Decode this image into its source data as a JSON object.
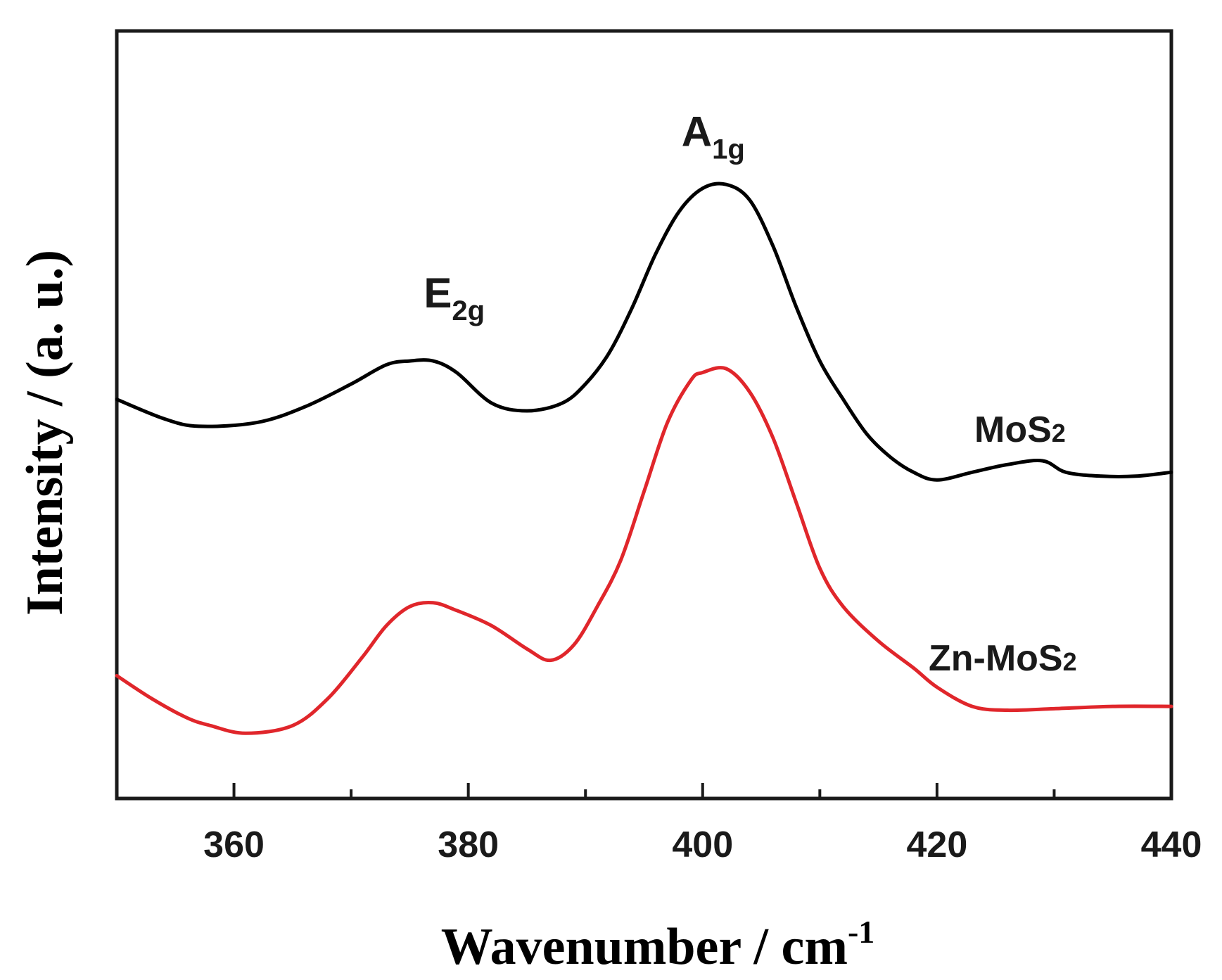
{
  "chart_data": {
    "type": "line",
    "title": "",
    "xlabel": "Wavenumber / cm",
    "xlabel_superscript": "-1",
    "ylabel": "Intensity / (a. u.)",
    "xlim": [
      350,
      440
    ],
    "ylim": [
      0,
      100
    ],
    "x_ticks": [
      360,
      380,
      400,
      420,
      440
    ],
    "x_tick_labels": [
      "360",
      "380",
      "400",
      "420",
      "440"
    ],
    "y_ticks_shown": false,
    "grid": false,
    "series": [
      {
        "name": "MoS2",
        "label_main": "MoS",
        "label_sub": "2",
        "color": "#000000",
        "points": [
          [
            350,
            52
          ],
          [
            354,
            49.5
          ],
          [
            357,
            48.5
          ],
          [
            362,
            49
          ],
          [
            366,
            51
          ],
          [
            370,
            54
          ],
          [
            373,
            56.5
          ],
          [
            375,
            57
          ],
          [
            377,
            57
          ],
          [
            379,
            55.5
          ],
          [
            382,
            51.5
          ],
          [
            385,
            50.5
          ],
          [
            388,
            51.5
          ],
          [
            390,
            54
          ],
          [
            392,
            58
          ],
          [
            394,
            64
          ],
          [
            396,
            71
          ],
          [
            398,
            76.5
          ],
          [
            400,
            79.5
          ],
          [
            402,
            80
          ],
          [
            404,
            78
          ],
          [
            406,
            72
          ],
          [
            408,
            64
          ],
          [
            410,
            57
          ],
          [
            412,
            52
          ],
          [
            414,
            47.5
          ],
          [
            416,
            44.5
          ],
          [
            418,
            42.5
          ],
          [
            420,
            41.5
          ],
          [
            423,
            42.5
          ],
          [
            426,
            43.5
          ],
          [
            429,
            44
          ],
          [
            431,
            42.5
          ],
          [
            434,
            42
          ],
          [
            437,
            42
          ],
          [
            440,
            42.5
          ]
        ]
      },
      {
        "name": "Zn-MoS2",
        "label_main": "Zn-MoS",
        "label_sub": "2",
        "color": "#e0262b",
        "points": [
          [
            350,
            16
          ],
          [
            353,
            13
          ],
          [
            356,
            10.5
          ],
          [
            358,
            9.5
          ],
          [
            361,
            8.5
          ],
          [
            365,
            9.5
          ],
          [
            368,
            13
          ],
          [
            371,
            18.5
          ],
          [
            373,
            22.5
          ],
          [
            375,
            25
          ],
          [
            377,
            25.5
          ],
          [
            379,
            24.5
          ],
          [
            382,
            22.5
          ],
          [
            385,
            19.5
          ],
          [
            387,
            18
          ],
          [
            389,
            20
          ],
          [
            391,
            25
          ],
          [
            393,
            31
          ],
          [
            395,
            40
          ],
          [
            397,
            49
          ],
          [
            399,
            54.5
          ],
          [
            400,
            55.5
          ],
          [
            402,
            56
          ],
          [
            404,
            53
          ],
          [
            406,
            47
          ],
          [
            408,
            38.5
          ],
          [
            410,
            30
          ],
          [
            412,
            25
          ],
          [
            415,
            20.5
          ],
          [
            418,
            17
          ],
          [
            420,
            14.5
          ],
          [
            423,
            12
          ],
          [
            426,
            11.5
          ],
          [
            430,
            11.7
          ],
          [
            435,
            12
          ],
          [
            440,
            12
          ]
        ]
      }
    ],
    "annotations": [
      {
        "name": "E2g",
        "main": "E",
        "sub": "2g",
        "x": 378,
        "y": 64
      },
      {
        "name": "A1g",
        "main": "A",
        "sub": "1g",
        "x": 400,
        "y": 85
      }
    ]
  }
}
